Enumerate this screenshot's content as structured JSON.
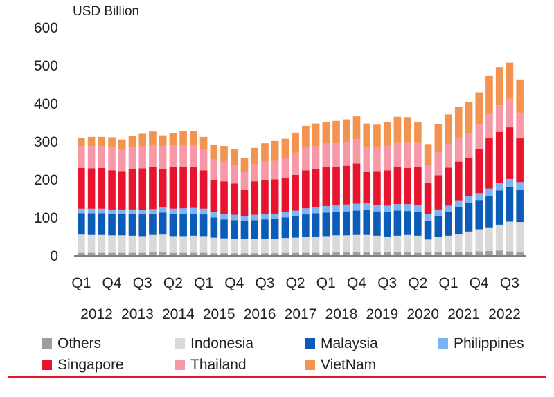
{
  "chart_data": {
    "type": "bar",
    "stacked": true,
    "ylabel": "USD Billion",
    "ylim": [
      0,
      600
    ],
    "yticks": [
      0,
      100,
      200,
      300,
      400,
      500,
      600
    ],
    "grid": false,
    "legend_position": "bottom",
    "categories": [
      "2012Q1",
      "2012Q2",
      "2012Q3",
      "2012Q4",
      "2013Q1",
      "2013Q2",
      "2013Q3",
      "2013Q4",
      "2014Q1",
      "2014Q2",
      "2014Q3",
      "2014Q4",
      "2015Q1",
      "2015Q2",
      "2015Q3",
      "2015Q4",
      "2016Q1",
      "2016Q2",
      "2016Q3",
      "2016Q4",
      "2017Q1",
      "2017Q2",
      "2017Q3",
      "2017Q4",
      "2018Q1",
      "2018Q2",
      "2018Q3",
      "2018Q4",
      "2019Q1",
      "2019Q2",
      "2019Q3",
      "2019Q4",
      "2020Q1",
      "2020Q2",
      "2020Q3",
      "2020Q4",
      "2021Q1",
      "2021Q2",
      "2021Q3",
      "2021Q4",
      "2022Q1",
      "2022Q2",
      "2022Q3",
      "2022Q4"
    ],
    "x_tick_labels": [
      "Q1",
      "Q4",
      "Q3",
      "Q2",
      "Q1",
      "Q4",
      "Q3",
      "Q2",
      "Q1",
      "Q4",
      "Q3",
      "Q2",
      "Q1",
      "Q4",
      "Q3"
    ],
    "year_labels": [
      "2012",
      "2013",
      "2014",
      "2015",
      "2016",
      "2017",
      "2018",
      "2019",
      "2020",
      "2021",
      "2022"
    ],
    "series": [
      {
        "name": "Others",
        "color": "#9e9e9e",
        "values": [
          8,
          8,
          8,
          8,
          8,
          8,
          8,
          9,
          9,
          8,
          8,
          8,
          8,
          7,
          7,
          7,
          7,
          7,
          7,
          7,
          8,
          8,
          8,
          8,
          8,
          9,
          9,
          9,
          9,
          9,
          9,
          10,
          9,
          8,
          9,
          10,
          10,
          10,
          11,
          12,
          13,
          14,
          12,
          9
        ]
      },
      {
        "name": "Indonesia",
        "color": "#d9d9d9",
        "values": [
          48,
          47,
          47,
          46,
          46,
          45,
          44,
          46,
          47,
          44,
          44,
          45,
          44,
          41,
          39,
          38,
          37,
          37,
          37,
          38,
          39,
          40,
          42,
          43,
          44,
          45,
          45,
          46,
          46,
          44,
          42,
          43,
          46,
          45,
          34,
          40,
          43,
          48,
          53,
          58,
          62,
          68,
          78,
          80
        ]
      },
      {
        "name": "Malaysia",
        "color": "#0b5cb8",
        "values": [
          56,
          57,
          57,
          56,
          56,
          57,
          57,
          56,
          58,
          58,
          58,
          58,
          57,
          53,
          50,
          49,
          48,
          50,
          52,
          52,
          54,
          56,
          59,
          61,
          62,
          62,
          63,
          64,
          66,
          64,
          64,
          66,
          63,
          62,
          50,
          55,
          62,
          70,
          75,
          77,
          83,
          90,
          92,
          85
        ]
      },
      {
        "name": "Philippines",
        "color": "#7ab4f5",
        "values": [
          12,
          12,
          12,
          12,
          12,
          12,
          12,
          12,
          13,
          14,
          15,
          15,
          15,
          14,
          14,
          14,
          13,
          14,
          14,
          14,
          15,
          15,
          16,
          16,
          17,
          17,
          18,
          18,
          18,
          17,
          17,
          17,
          18,
          18,
          16,
          17,
          17,
          18,
          18,
          18,
          19,
          19,
          20,
          20
        ]
      },
      {
        "name": "Singapore",
        "color": "#e8132c",
        "values": [
          107,
          106,
          107,
          103,
          101,
          106,
          109,
          111,
          101,
          109,
          109,
          108,
          101,
          85,
          86,
          82,
          69,
          88,
          90,
          90,
          88,
          94,
          100,
          100,
          102,
          101,
          102,
          106,
          83,
          89,
          93,
          97,
          95,
          100,
          82,
          90,
          100,
          102,
          100,
          115,
          132,
          135,
          136,
          115
        ]
      },
      {
        "name": "Thailand",
        "color": "#f798a8",
        "values": [
          58,
          59,
          58,
          60,
          57,
          57,
          58,
          58,
          61,
          58,
          58,
          58,
          55,
          53,
          52,
          50,
          46,
          45,
          48,
          49,
          53,
          58,
          59,
          60,
          62,
          62,
          63,
          64,
          65,
          64,
          64,
          64,
          66,
          64,
          48,
          60,
          62,
          62,
          65,
          65,
          67,
          70,
          75,
          65
        ]
      },
      {
        "name": "VietNam",
        "color": "#f29450",
        "values": [
          22,
          24,
          24,
          27,
          26,
          30,
          33,
          35,
          28,
          32,
          37,
          36,
          33,
          38,
          41,
          41,
          38,
          43,
          48,
          52,
          51,
          53,
          58,
          60,
          57,
          59,
          59,
          60,
          61,
          58,
          62,
          69,
          68,
          54,
          55,
          75,
          78,
          82,
          82,
          85,
          97,
          100,
          95,
          90
        ]
      }
    ]
  }
}
